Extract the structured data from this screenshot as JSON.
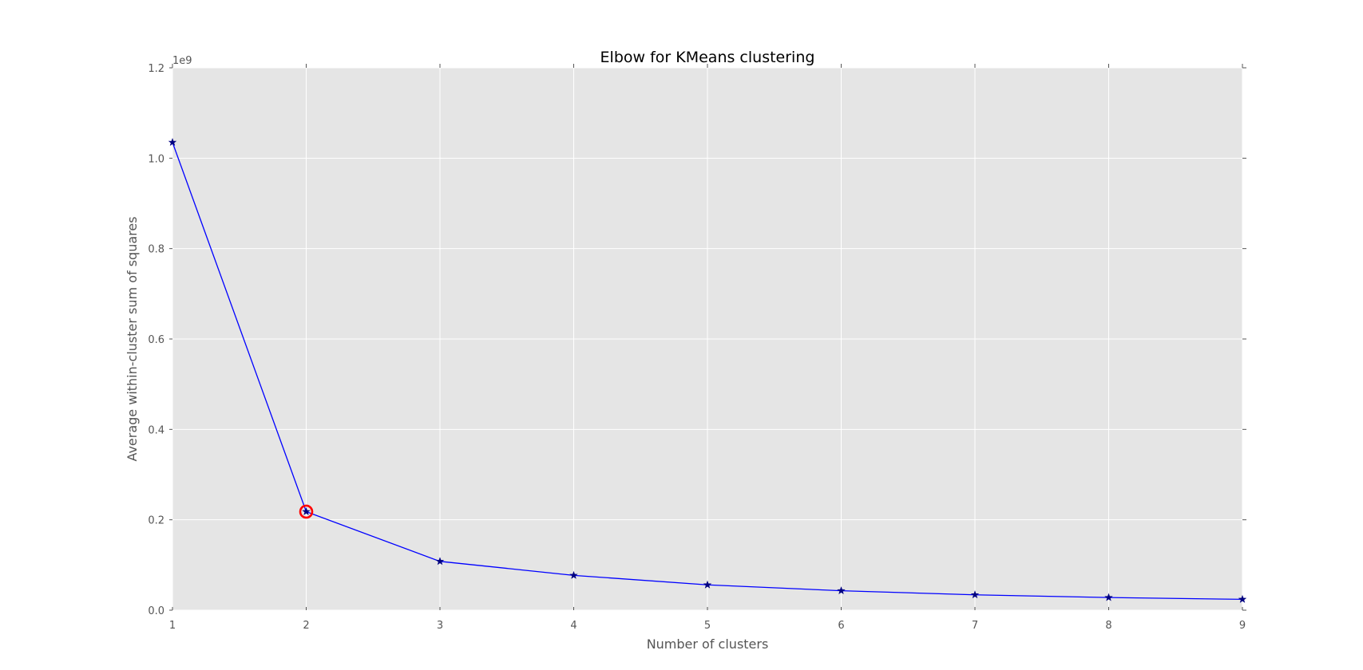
{
  "chart_data": {
    "type": "line",
    "title": "Elbow for KMeans clustering",
    "xlabel": "Number of clusters",
    "ylabel": "Average within-cluster sum of squares",
    "y_offset_label": "1e9",
    "x": [
      1,
      2,
      3,
      4,
      5,
      6,
      7,
      8,
      9
    ],
    "x_ticks": [
      "1",
      "2",
      "3",
      "4",
      "5",
      "6",
      "7",
      "8",
      "9"
    ],
    "y_ticks": [
      "0.0",
      "0.2",
      "0.4",
      "0.6",
      "0.8",
      "1.0",
      "1.2"
    ],
    "y_tick_values": [
      0.0,
      0.2,
      0.4,
      0.6,
      0.8,
      1.0,
      1.2
    ],
    "xlim": [
      1,
      9
    ],
    "ylim": [
      0.0,
      1.2
    ],
    "y_unit_scale": 1000000000,
    "grid": true,
    "background_color": "#e5e5e5",
    "series": [
      {
        "values": [
          1.035,
          0.218,
          0.108,
          0.077,
          0.056,
          0.043,
          0.034,
          0.028,
          0.024
        ],
        "color": "#0000ff",
        "marker": "star",
        "marker_color": "#000080"
      }
    ],
    "highlight": {
      "x": 2,
      "y": 0.218,
      "color": "#ff0000",
      "shape": "circle"
    }
  }
}
